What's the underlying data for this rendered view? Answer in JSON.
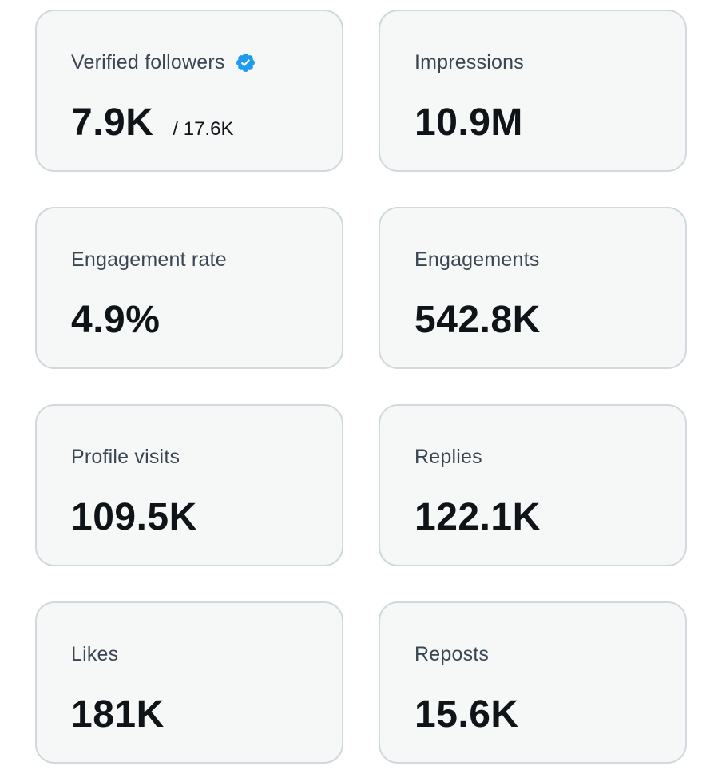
{
  "stats": [
    {
      "label": "Verified followers",
      "value": "7.9K",
      "secondary": "/ 17.6K",
      "icon": "verified-badge-icon"
    },
    {
      "label": "Impressions",
      "value": "10.9M"
    },
    {
      "label": "Engagement rate",
      "value": "4.9%"
    },
    {
      "label": "Engagements",
      "value": "542.8K"
    },
    {
      "label": "Profile visits",
      "value": "109.5K"
    },
    {
      "label": "Replies",
      "value": "122.1K"
    },
    {
      "label": "Likes",
      "value": "181K"
    },
    {
      "label": "Reposts",
      "value": "15.6K"
    }
  ],
  "colors": {
    "card_background": "#f6f7f7",
    "card_border": "#cfd9de",
    "label_text": "#3a4653",
    "value_text": "#0f1419",
    "verified_badge": "#1d9bf0"
  }
}
